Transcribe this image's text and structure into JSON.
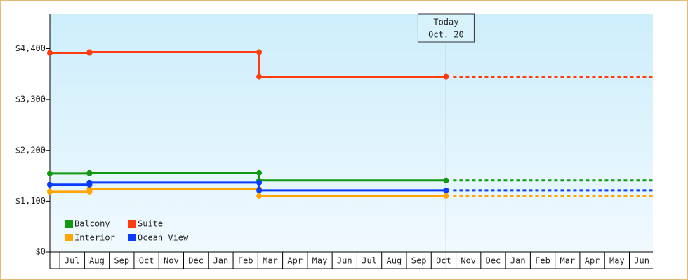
{
  "chart_data": {
    "type": "step-line",
    "categories": [
      "Jul",
      "Aug",
      "Sep",
      "Oct",
      "Nov",
      "Dec",
      "Jan",
      "Feb",
      "Mar",
      "Apr",
      "May",
      "Jun",
      "Jul",
      "Aug",
      "Sep",
      "Oct",
      "Nov",
      "Dec",
      "Jan",
      "Feb",
      "Mar",
      "Apr",
      "May",
      "Jun"
    ],
    "xlim": [
      -0.4,
      23.95
    ],
    "ylim": [
      0,
      5150
    ],
    "yticks": [
      {
        "value": 0,
        "label": "$0"
      },
      {
        "value": 1100,
        "label": "$1,100"
      },
      {
        "value": 2200,
        "label": "$2,200"
      },
      {
        "value": 3300,
        "label": "$3,300"
      },
      {
        "value": 4400,
        "label": "$4,400"
      }
    ],
    "annotation": {
      "x": 15.6,
      "lines": [
        "Today",
        "Oct. 20"
      ]
    },
    "legend": "bottom-left",
    "series": [
      {
        "name": "Balcony",
        "color": "#119911",
        "x": [
          -0.4,
          1.2,
          8.05,
          15.6
        ],
        "values": [
          1699,
          1714,
          1548,
          1548
        ]
      },
      {
        "name": "Suite",
        "color": "#ff3c0f",
        "x": [
          -0.4,
          1.2,
          8.05,
          15.6
        ],
        "values": [
          4309,
          4324,
          3793,
          3793
        ]
      },
      {
        "name": "Interior",
        "color": "#ffa500",
        "x": [
          -0.4,
          1.2,
          8.05,
          15.6
        ],
        "values": [
          1305,
          1366,
          1214,
          1214
        ]
      },
      {
        "name": "Ocean View",
        "color": "#0a3cff",
        "x": [
          -0.4,
          1.2,
          8.05,
          15.6
        ],
        "values": [
          1457,
          1502,
          1335,
          1335
        ]
      }
    ]
  }
}
